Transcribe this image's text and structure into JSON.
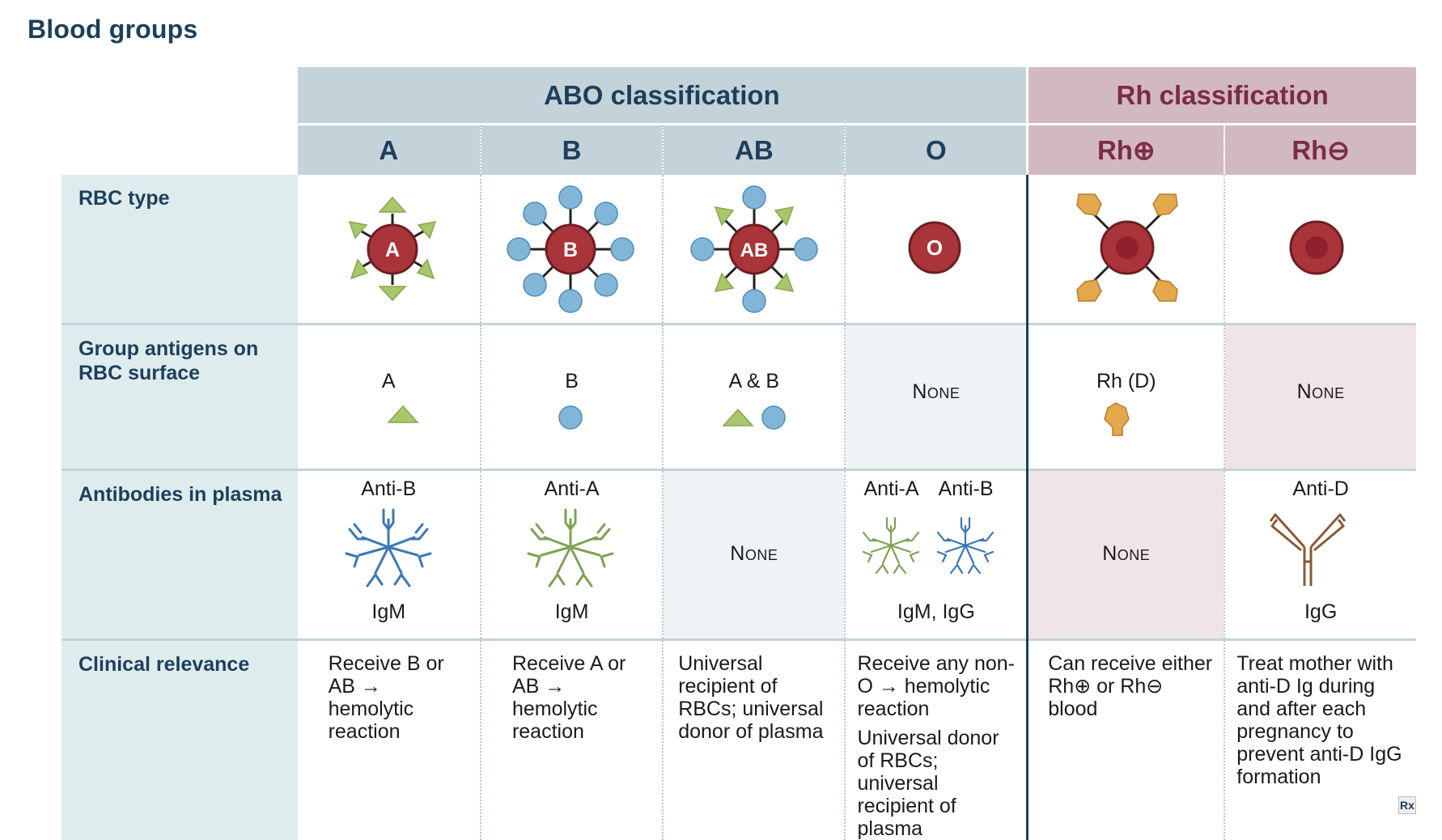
{
  "title": "Blood groups",
  "headers": {
    "abo": "ABO classification",
    "rh": "Rh classification",
    "columns": [
      "A",
      "B",
      "AB",
      "O",
      "Rh⊕",
      "Rh⊖"
    ]
  },
  "rows": {
    "rbc_type": {
      "label": "RBC type",
      "cells": [
        "A",
        "B",
        "AB",
        "O",
        "",
        ""
      ]
    },
    "antigens": {
      "label": "Group antigens on RBC surface",
      "cells": [
        "A",
        "B",
        "A & B",
        "None",
        "Rh (D)",
        "None"
      ]
    },
    "antibodies": {
      "label": "Antibodies in plasma",
      "names": [
        "Anti-B",
        "Anti-A",
        "",
        "Anti-A",
        "Anti-B",
        "",
        "Anti-D"
      ],
      "none_text": "None",
      "classes": [
        "IgM",
        "IgM",
        "IgM, IgG",
        "IgG"
      ]
    },
    "clinical": {
      "label": "Clinical relevance",
      "cells": [
        "Receive B or AB → hemolytic reaction",
        "Receive A or AB → hemolytic reaction",
        "Universal recipient of RBCs; universal donor of plasma",
        "Receive any non-O → hemolytic reaction",
        "Universal donor of RBCs; universal recipient of plasma",
        "Can receive either Rh⊕ or Rh⊖ blood",
        "Treat mother with anti-D Ig during and after each pregnancy to prevent anti-D IgG formation"
      ]
    }
  },
  "colors": {
    "navy": "#1d3f5c",
    "maroon": "#7c2b45",
    "abo_header": "#c4d3d9",
    "rh_header": "#d2b9c1",
    "row_label_bg": "#dfecee",
    "rbc": "#a9343a",
    "antigen_a": "#a9c66a",
    "antigen_b": "#82b6d9",
    "rh_antigen": "#e3a74c",
    "igm_anti_b": "#3b78b5",
    "igm_anti_a": "#7ea254",
    "igg": "#8a5a35"
  },
  "icons": {
    "rx_badge": "rx-logo-icon"
  },
  "watermark": "Rx"
}
